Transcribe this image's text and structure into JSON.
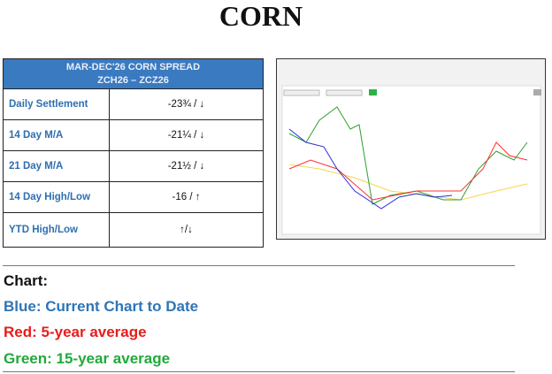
{
  "title": "CORN",
  "table": {
    "header": [
      "MAR-DEC'26 CORN SPREAD",
      "ZCH26 – ZCZ26"
    ],
    "rows": [
      [
        "Daily Settlement",
        "-23¾ / ↓"
      ],
      [
        "14 Day M/A",
        "-21¼ / ↓"
      ],
      [
        "21 Day M/A",
        "-21½ / ↓"
      ],
      [
        "14 Day High/Low",
        "-16 / ↑"
      ],
      [
        "YTD High/Low",
        "↑/↓"
      ]
    ]
  },
  "legend": {
    "heading": "Chart:",
    "items": [
      "Blue: Current Chart to Date",
      "Red: 5-year average",
      "Green: 15-year average"
    ]
  }
}
